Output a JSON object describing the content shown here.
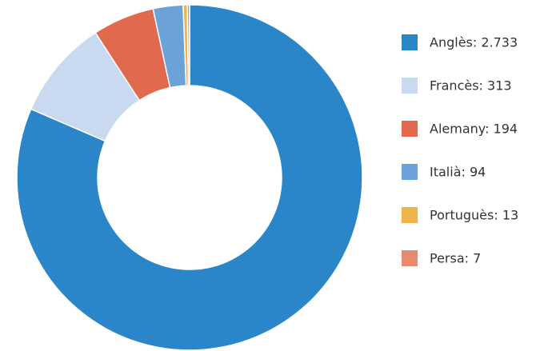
{
  "chart_data": {
    "type": "donut",
    "categories": [
      "Anglès: 2.733",
      "Francès: 313",
      "Alemany: 194",
      "Italià: 94",
      "Portuguès: 13",
      "Persa: 7"
    ],
    "values": [
      2733,
      313,
      194,
      94,
      13,
      7
    ],
    "colors": [
      "#2a86c9",
      "#c8d9f0",
      "#e0694e",
      "#6ba2d8",
      "#efb34b",
      "#e78a6e"
    ],
    "legend": "right"
  }
}
